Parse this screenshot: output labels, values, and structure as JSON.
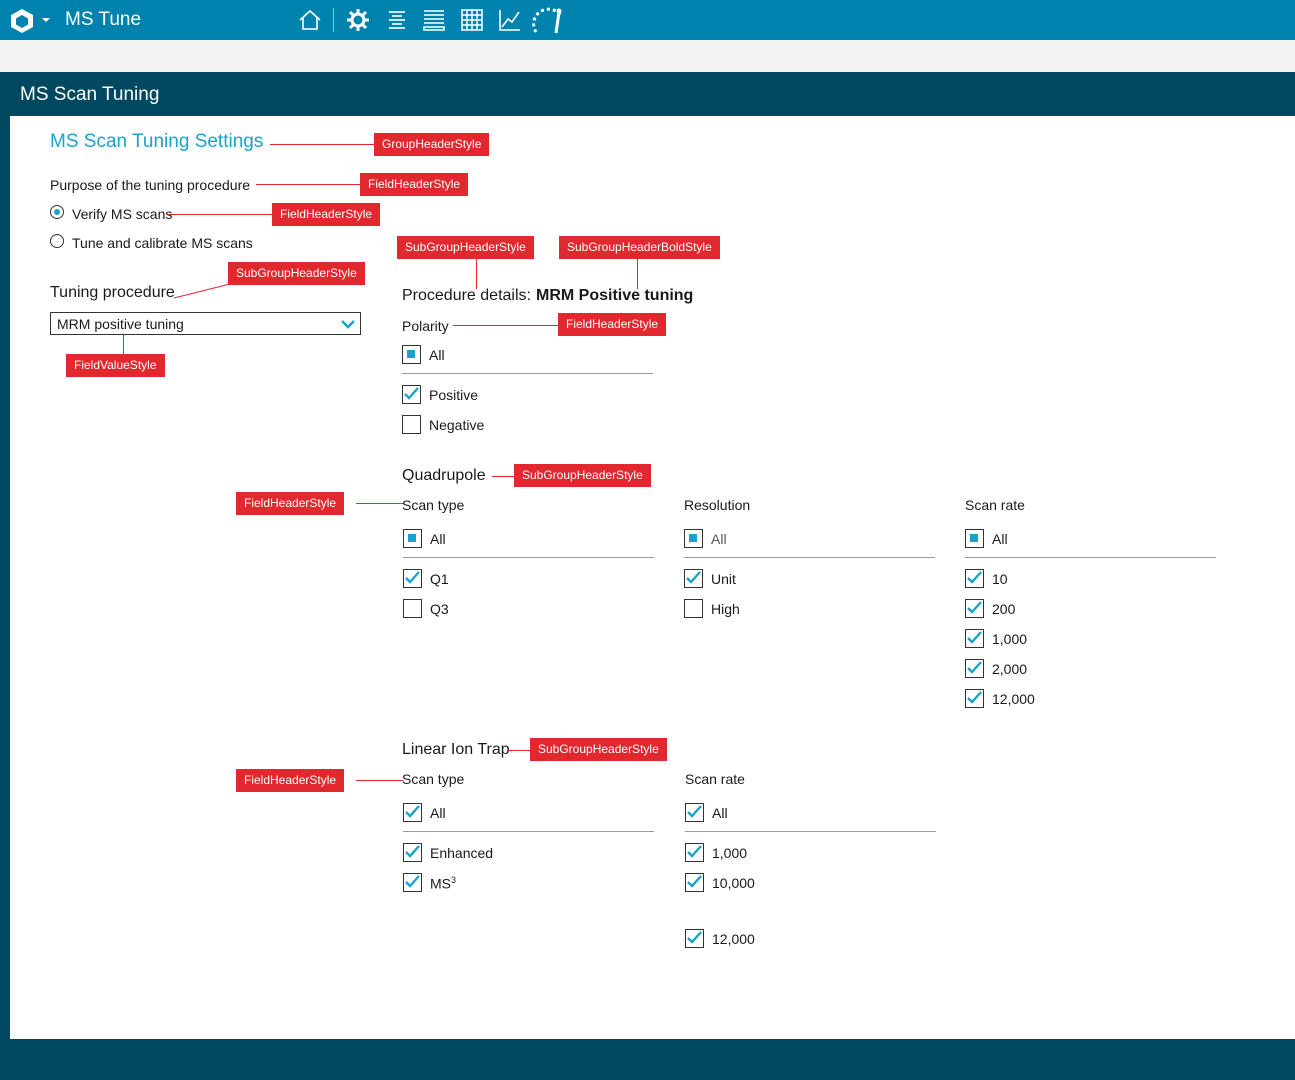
{
  "app": {
    "title": "MS Tune"
  },
  "toolbar": {
    "icons": [
      "home-icon",
      "gear-icon",
      "list-filter-icon",
      "queue-icon",
      "grid-icon",
      "chart-icon",
      "gauge-icon"
    ]
  },
  "page": {
    "title": "MS Scan Tuning"
  },
  "settings": {
    "title": "MS Scan Tuning Settings",
    "purpose_label": "Purpose of the tuning procedure",
    "purpose_options": [
      {
        "label": "Verify MS scans",
        "selected": true
      },
      {
        "label": "Tune and calibrate MS scans",
        "selected": false
      }
    ],
    "tuning_procedure_label": "Tuning procedure",
    "tuning_procedure_value": "MRM positive tuning"
  },
  "details": {
    "label": "Procedure details:",
    "value": "MRM Positive tuning",
    "polarity": {
      "label": "Polarity",
      "all": "All",
      "options": [
        {
          "label": "Positive",
          "checked": true
        },
        {
          "label": "Negative",
          "checked": false
        }
      ]
    },
    "quadrupole": {
      "title": "Quadrupole",
      "scan_type": {
        "label": "Scan type",
        "all": "All",
        "options": [
          {
            "label": "Q1",
            "checked": true
          },
          {
            "label": "Q3",
            "checked": false
          }
        ]
      },
      "resolution": {
        "label": "Resolution",
        "all": "All",
        "options": [
          {
            "label": "Unit",
            "checked": true
          },
          {
            "label": "High",
            "checked": false
          }
        ]
      },
      "scan_rate": {
        "label": "Scan rate",
        "all": "All",
        "options": [
          {
            "label": "10",
            "checked": true
          },
          {
            "label": "200",
            "checked": true
          },
          {
            "label": "1,000",
            "checked": true
          },
          {
            "label": "2,000",
            "checked": true
          },
          {
            "label": "12,000",
            "checked": true
          }
        ]
      }
    },
    "lit": {
      "title": "Linear Ion Trap",
      "scan_type": {
        "label": "Scan type",
        "all": "All",
        "options": [
          {
            "label": "Enhanced",
            "checked": true
          },
          {
            "label": "MS",
            "sup": "3",
            "checked": true
          }
        ]
      },
      "scan_rate": {
        "label": "Scan rate",
        "all": "All",
        "options": [
          {
            "label": "1,000",
            "checked": true
          },
          {
            "label": "10,000",
            "checked": true
          },
          {
            "label": "12,000",
            "checked": true
          }
        ]
      }
    }
  },
  "annotations": {
    "group_header": "GroupHeaderStyle",
    "field_header": "FieldHeaderStyle",
    "subgroup_header": "SubGroupHeaderStyle",
    "subgroup_header_bold": "SubGroupHeaderBoldStyle",
    "field_value": "FieldValueStyle"
  },
  "colors": {
    "topbar": "#0082ae",
    "dark": "#004760",
    "accent": "#19a3c8",
    "annotation": "#e0282e"
  }
}
